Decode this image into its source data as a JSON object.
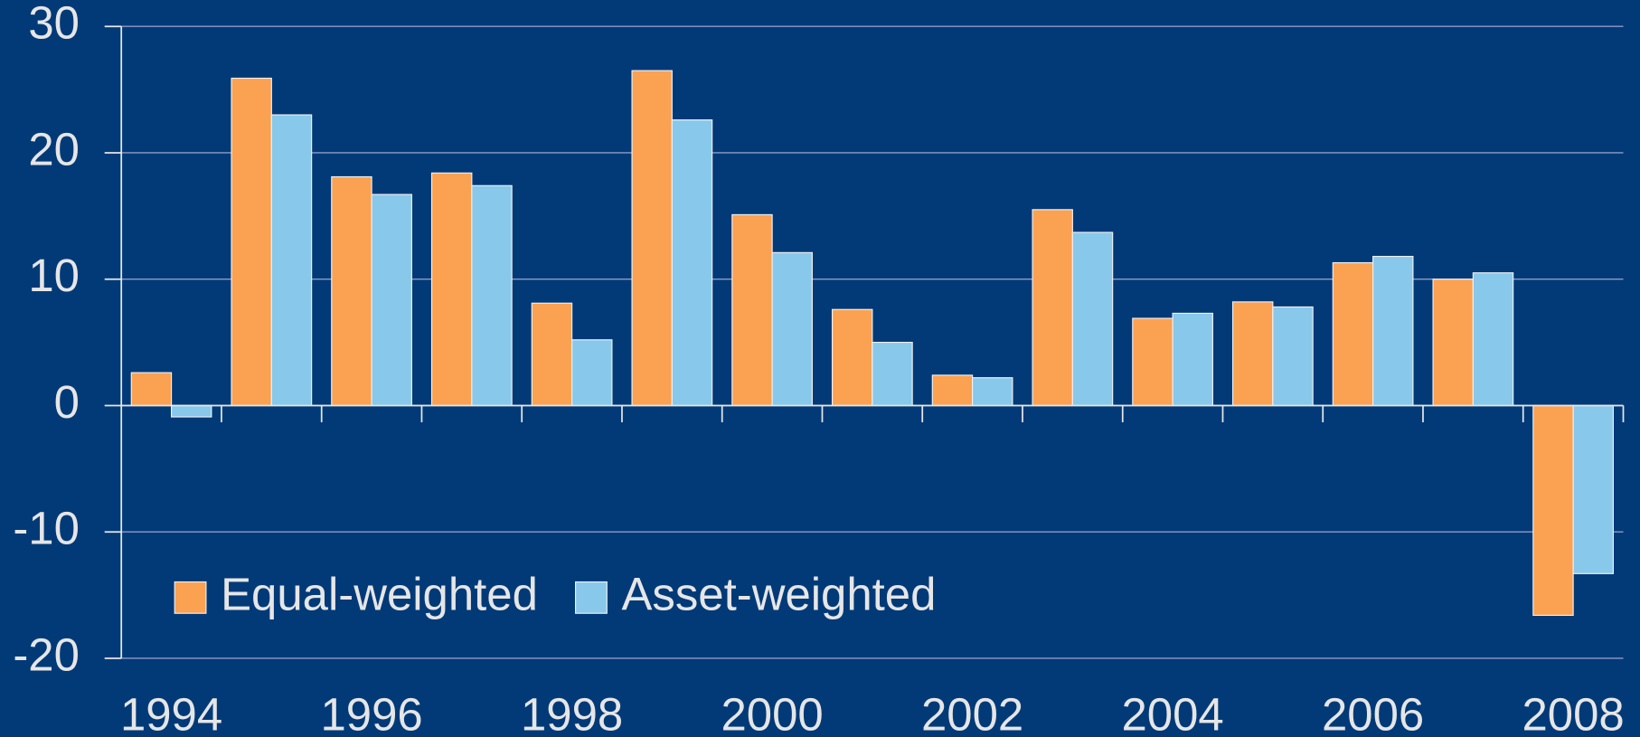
{
  "chart_data": {
    "type": "bar",
    "categories": [
      "1994",
      null,
      "1996",
      null,
      "1998",
      null,
      "2000",
      null,
      "2002",
      null,
      "2004",
      null,
      "2006",
      null,
      "2008"
    ],
    "series": [
      {
        "name": "Equal-weighted",
        "color": "#fba152",
        "values": [
          2.6,
          25.9,
          18.1,
          18.4,
          8.1,
          26.5,
          15.1,
          7.6,
          2.4,
          15.5,
          6.9,
          8.2,
          11.3,
          10.0,
          -16.6
        ]
      },
      {
        "name": "Asset-weighted",
        "color": "#88c8ea",
        "values": [
          -0.9,
          23.0,
          16.7,
          17.4,
          5.2,
          22.6,
          12.1,
          5.0,
          2.2,
          13.7,
          7.3,
          7.8,
          11.8,
          10.5,
          -13.3
        ]
      }
    ],
    "ylim": [
      -20,
      30
    ],
    "yticks": [
      -20,
      -10,
      0,
      10,
      20,
      30
    ],
    "grid": true,
    "legend": "lower left"
  }
}
